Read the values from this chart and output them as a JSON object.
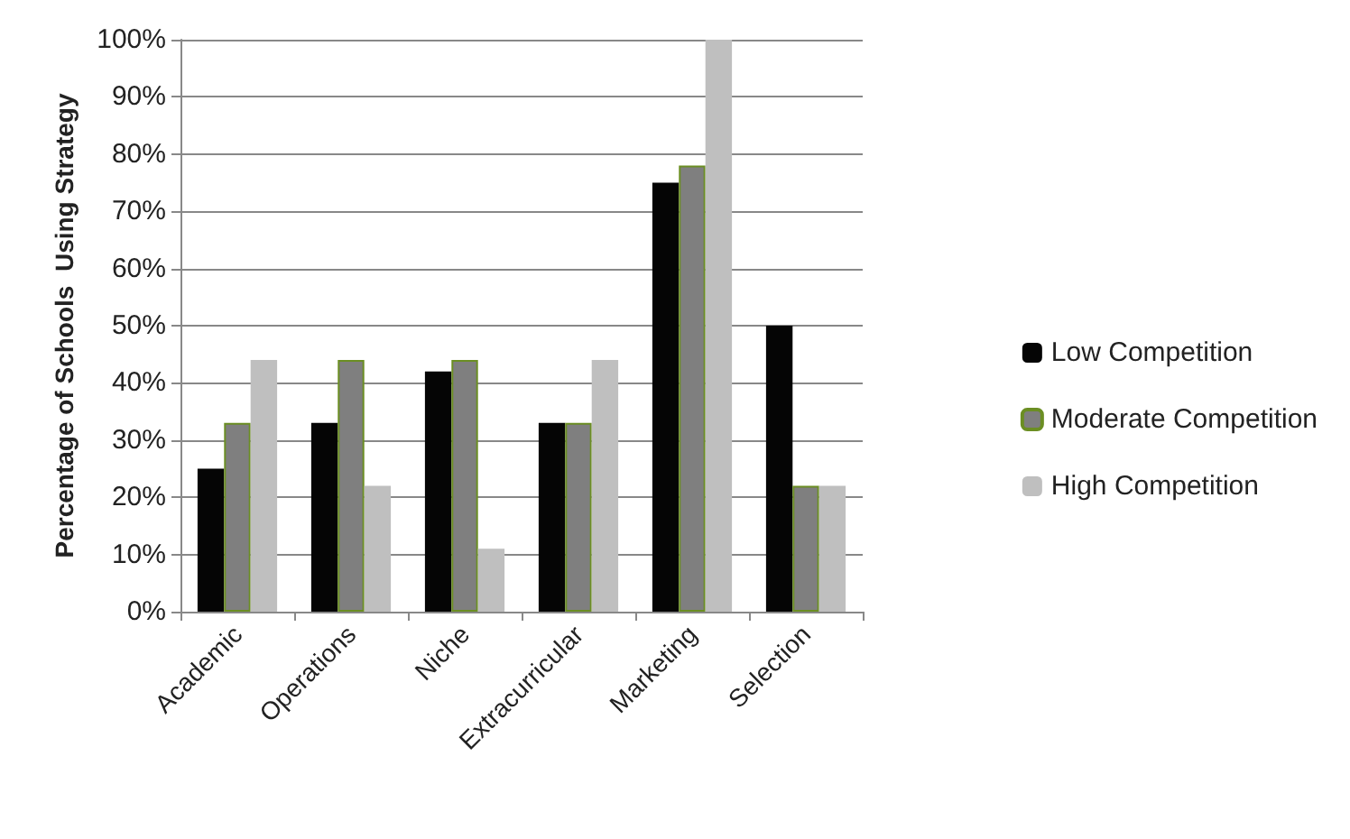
{
  "chart_data": {
    "type": "bar",
    "ylabel": "Percentage of Schools  Using Strategy",
    "categories": [
      "Academic",
      "Operations",
      "Niche",
      "Extracurricular",
      "Marketing",
      "Selection"
    ],
    "series": [
      {
        "name": "Low Competition",
        "color": "#050505",
        "values": [
          25,
          33,
          42,
          33,
          75,
          50
        ]
      },
      {
        "name": "Moderate Competition",
        "color": "#7f7f7f",
        "values": [
          33,
          44,
          44,
          33,
          78,
          22
        ]
      },
      {
        "name": "High Competition",
        "color": "#bfbfbf",
        "values": [
          44,
          22,
          11,
          44,
          100,
          22
        ]
      }
    ],
    "ylim": [
      0,
      100
    ],
    "yticks": [
      {
        "value": 0,
        "label": "0%"
      },
      {
        "value": 10,
        "label": "10%"
      },
      {
        "value": 20,
        "label": "20%"
      },
      {
        "value": 30,
        "label": "30%"
      },
      {
        "value": 40,
        "label": "40%"
      },
      {
        "value": 50,
        "label": "50%"
      },
      {
        "value": 60,
        "label": "60%"
      },
      {
        "value": 70,
        "label": "70%"
      },
      {
        "value": 80,
        "label": "80%"
      },
      {
        "value": 90,
        "label": "90%"
      },
      {
        "value": 100,
        "label": "100%"
      }
    ],
    "grid": "y",
    "legend": "right"
  }
}
